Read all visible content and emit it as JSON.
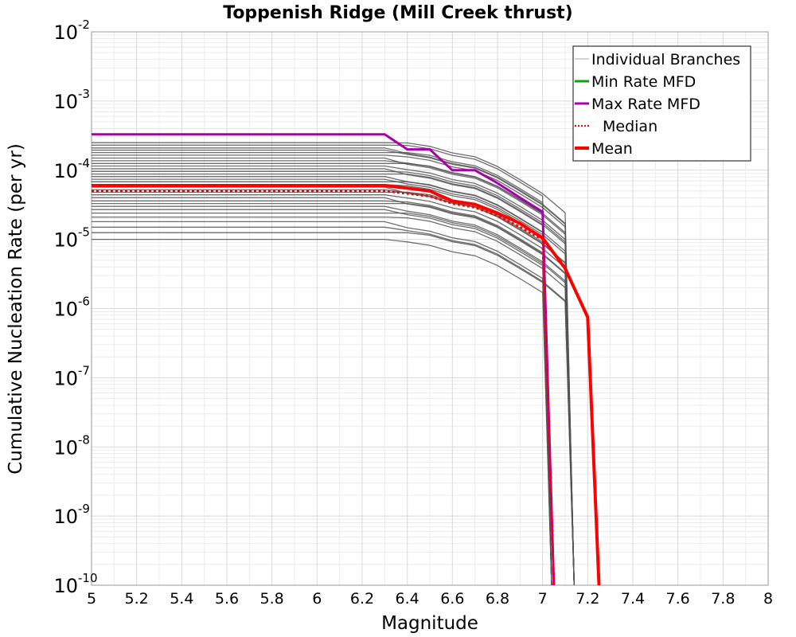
{
  "chart_data": {
    "type": "line",
    "title": "Toppenish Ridge (Mill Creek thrust)",
    "xlabel": "Magnitude",
    "ylabel": "Cumulative Nucleation Rate (per yr)",
    "xlim": [
      5,
      8
    ],
    "ylim": [
      1e-10,
      0.01
    ],
    "yscale": "log",
    "grid": true,
    "legend_position": "top-right",
    "x_ticks": [
      "5",
      "5.2",
      "5.4",
      "5.6",
      "5.8",
      "6",
      "6.2",
      "6.4",
      "6.6",
      "6.8",
      "7",
      "7.2",
      "7.4",
      "7.6",
      "7.8",
      "8"
    ],
    "y_ticks": [
      {
        "base": "10",
        "exp": "-2"
      },
      {
        "base": "10",
        "exp": "-3"
      },
      {
        "base": "10",
        "exp": "-4"
      },
      {
        "base": "10",
        "exp": "-5"
      },
      {
        "base": "10",
        "exp": "-6"
      },
      {
        "base": "10",
        "exp": "-7"
      },
      {
        "base": "10",
        "exp": "-8"
      },
      {
        "base": "10",
        "exp": "-9"
      },
      {
        "base": "10",
        "exp": "-10"
      }
    ],
    "branch_lines": {
      "color": "#555555",
      "note_levels": [
        1e-05,
        1.25e-05,
        1.5e-05,
        1.8e-05,
        2.1e-05,
        2.4e-05,
        2.7e-05,
        3e-05,
        3.3e-05,
        3.6e-05,
        4e-05,
        4.4e-05,
        4.8e-05,
        5.2e-05,
        5.7e-05,
        6.2e-05,
        6.8e-05,
        7.4e-05,
        8.1e-05,
        8.8e-05,
        9.6e-05,
        0.000105,
        0.000115,
        0.000125,
        0.000137,
        0.00015,
        0.000165,
        0.00018,
        0.000195,
        0.00021,
        0.00023,
        0.00025
      ],
      "mmax_values": [
        7.0,
        7.1,
        7.2
      ]
    },
    "series": [
      {
        "name": "Individual Branches",
        "color": "#aaaaaa",
        "points": []
      },
      {
        "name": "Min Rate MFD",
        "color": "#00aa00",
        "points": []
      },
      {
        "name": "Max Rate MFD",
        "color": "#aa00aa",
        "points": [
          [
            5,
            0.00033
          ],
          [
            6.3,
            0.00033
          ],
          [
            6.4,
            0.0002
          ],
          [
            6.5,
            0.0002
          ],
          [
            6.6,
            0.0001
          ],
          [
            6.7,
            0.0001
          ],
          [
            6.8,
            6.5e-05
          ],
          [
            6.9,
            4e-05
          ],
          [
            7.0,
            2.5e-05
          ],
          [
            7.05,
            1e-10
          ]
        ]
      },
      {
        "name": "Median",
        "color": "#ff0000",
        "dashed": true,
        "points": [
          [
            5,
            5e-05
          ],
          [
            6.3,
            5e-05
          ],
          [
            6.4,
            4.6e-05
          ],
          [
            6.5,
            4.2e-05
          ],
          [
            6.6,
            3.3e-05
          ],
          [
            6.7,
            2.9e-05
          ],
          [
            6.8,
            2.2e-05
          ],
          [
            6.9,
            1.5e-05
          ],
          [
            7.0,
            1e-05
          ],
          [
            7.05,
            1e-10
          ]
        ]
      },
      {
        "name": "Mean",
        "color": "#ff0000",
        "points": [
          [
            5,
            6e-05
          ],
          [
            6.3,
            6e-05
          ],
          [
            6.4,
            5.5e-05
          ],
          [
            6.5,
            5e-05
          ],
          [
            6.6,
            3.6e-05
          ],
          [
            6.7,
            3.2e-05
          ],
          [
            6.8,
            2.4e-05
          ],
          [
            6.9,
            1.7e-05
          ],
          [
            7.0,
            1.05e-05
          ],
          [
            7.1,
            3.8e-06
          ],
          [
            7.2,
            7.5e-07
          ],
          [
            7.25,
            1e-10
          ]
        ]
      }
    ]
  }
}
